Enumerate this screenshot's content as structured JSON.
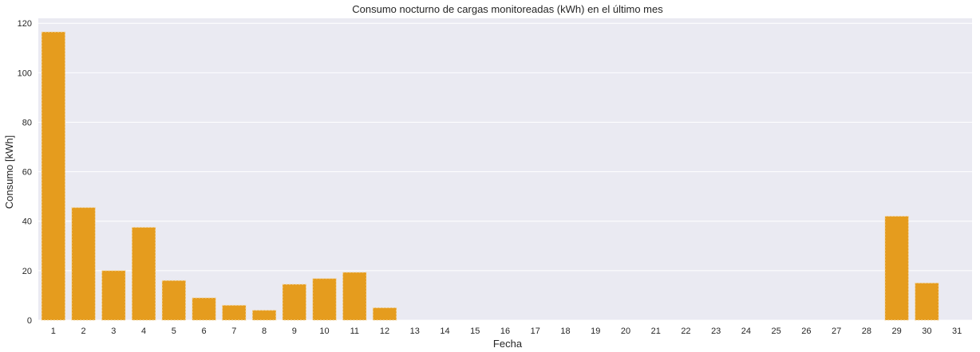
{
  "chart_data": {
    "type": "bar",
    "title": "Consumo nocturno de cargas monitoreadas (kWh) en el último mes",
    "xlabel": "Fecha",
    "ylabel": "Consumo [kWh]",
    "categories": [
      "1",
      "2",
      "3",
      "4",
      "5",
      "6",
      "7",
      "8",
      "9",
      "10",
      "11",
      "12",
      "13",
      "14",
      "15",
      "16",
      "17",
      "18",
      "19",
      "20",
      "21",
      "22",
      "23",
      "24",
      "25",
      "26",
      "27",
      "28",
      "29",
      "30",
      "31"
    ],
    "values": [
      116.5,
      45.5,
      20.0,
      37.5,
      16.0,
      9.0,
      6.0,
      4.0,
      14.5,
      16.8,
      19.3,
      5.0,
      0,
      0,
      0,
      0,
      0,
      0,
      0,
      0,
      0,
      0,
      0,
      0,
      0,
      0,
      0,
      0,
      42.0,
      15.0,
      0
    ],
    "ylim": [
      0,
      122
    ],
    "yticks": [
      0,
      20,
      40,
      60,
      80,
      100,
      120
    ],
    "grid": true,
    "colors": {
      "bar": "#E59C1E",
      "bar_edge": "#F3D9A8",
      "plot_bg": "#EAEAF2",
      "grid": "#FFFFFF",
      "text": "#262626"
    }
  }
}
